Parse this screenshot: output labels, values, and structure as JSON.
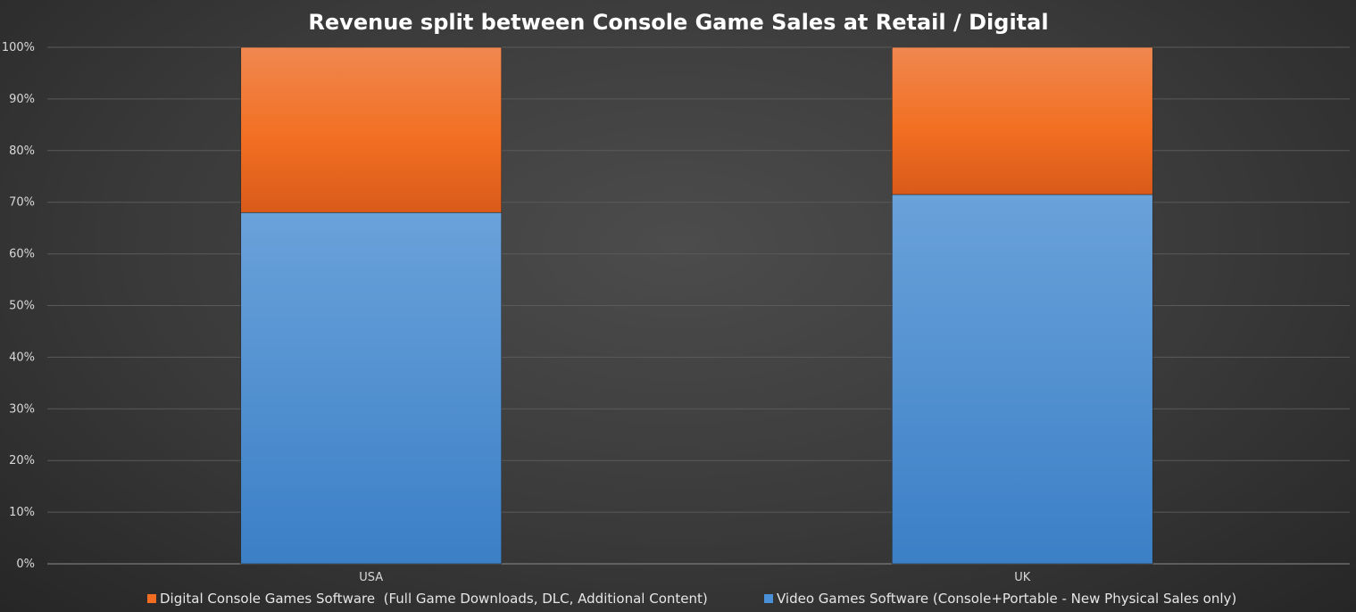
{
  "chart_data": {
    "type": "bar",
    "stacked": true,
    "title": "Revenue split between Console Game Sales at Retail / Digital",
    "categories": [
      "USA",
      "UK"
    ],
    "series": [
      {
        "name": "Video Games Software (Console+Portable - New Physical Sales only)",
        "color": "#4a90d9",
        "values": [
          68,
          71.5
        ]
      },
      {
        "name": "Digital Console Games Software  (Full Game Downloads, DLC, Additional Content)",
        "color": "#f26d21",
        "values": [
          32,
          28.5
        ]
      }
    ],
    "ylim": [
      0,
      100
    ],
    "yticks": [
      "0%",
      "10%",
      "20%",
      "30%",
      "40%",
      "50%",
      "60%",
      "70%",
      "80%",
      "90%",
      "100%"
    ],
    "xlabel": "",
    "ylabel": "",
    "grid": true,
    "legend_position": "bottom",
    "legend_order": [
      1,
      0
    ]
  }
}
